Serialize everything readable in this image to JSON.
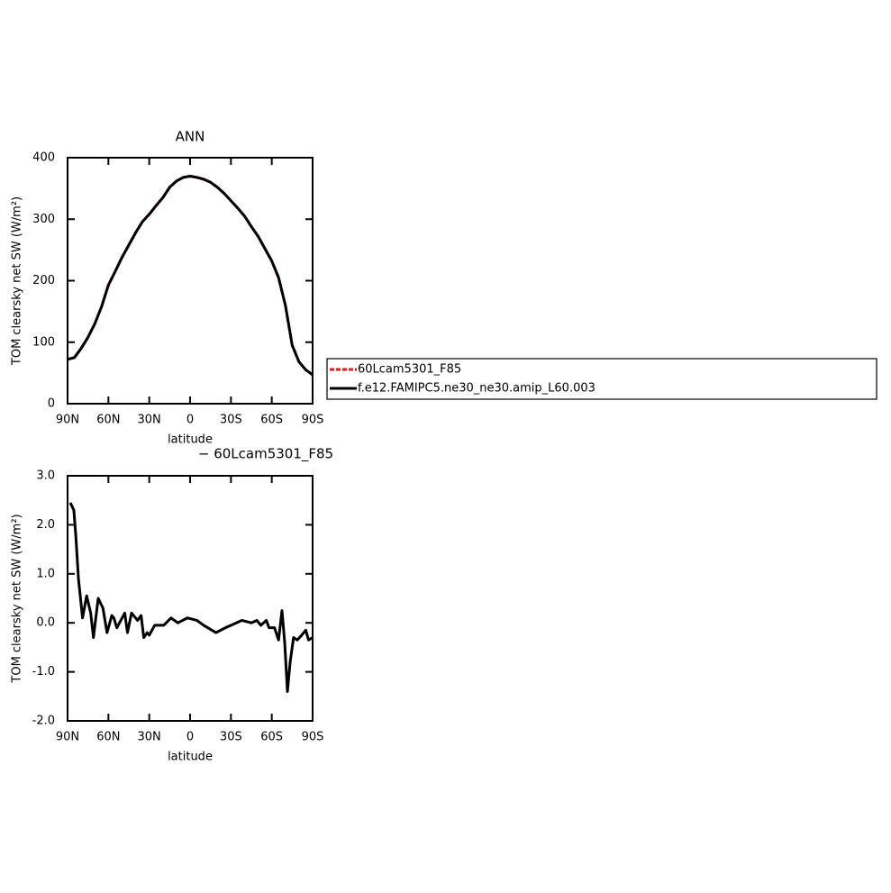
{
  "chart_data": [
    {
      "type": "line",
      "title": "ANN",
      "xlabel": "latitude",
      "ylabel": "TOM clearsky net SW (W/m²)",
      "x": [
        90,
        85,
        80,
        75,
        70,
        65,
        60,
        55,
        50,
        45,
        40,
        35,
        30,
        25,
        20,
        15,
        10,
        5,
        0,
        -5,
        -10,
        -15,
        -20,
        -25,
        -30,
        -35,
        -40,
        -45,
        -50,
        -55,
        -60,
        -65,
        -70,
        -75,
        -80,
        -85,
        -90
      ],
      "series": [
        {
          "name": "60Lcam5301_F85",
          "color": "#e31a1c",
          "dashed": true,
          "values": [
            72,
            75,
            90,
            108,
            130,
            158,
            193,
            215,
            238,
            258,
            278,
            296,
            308,
            322,
            335,
            352,
            362,
            368,
            370,
            368,
            365,
            360,
            352,
            342,
            330,
            318,
            305,
            288,
            272,
            252,
            232,
            205,
            160,
            95,
            68,
            55,
            47
          ]
        },
        {
          "name": "f.e12.FAMIPC5.ne30_ne30.amip_L60.003",
          "color": "#000000",
          "dashed": false,
          "values": [
            72,
            75,
            90,
            108,
            130,
            158,
            193,
            215,
            238,
            258,
            278,
            296,
            308,
            322,
            335,
            352,
            362,
            368,
            370,
            368,
            365,
            360,
            352,
            342,
            330,
            318,
            305,
            288,
            272,
            252,
            232,
            205,
            160,
            95,
            68,
            55,
            47
          ]
        }
      ],
      "xlim": [
        90,
        -90
      ],
      "xticks": [
        {
          "value": 90,
          "label": "90N"
        },
        {
          "value": 60,
          "label": "60N"
        },
        {
          "value": 30,
          "label": "30N"
        },
        0,
        {
          "value": -30,
          "label": "30S"
        },
        {
          "value": -60,
          "label": "60S"
        },
        {
          "value": -90,
          "label": "90S"
        }
      ],
      "ylim": [
        0,
        400
      ],
      "yticks": [
        0,
        100,
        200,
        300,
        400
      ],
      "legend": true
    },
    {
      "type": "line",
      "title": "− 60Lcam5301_F85",
      "xlabel": "latitude",
      "ylabel": "TOM clearsky net SW (W/m²)",
      "x": [
        88,
        85.4,
        84,
        82,
        79,
        76,
        73,
        71,
        67.5,
        64,
        61,
        57.5,
        56,
        53.8,
        48,
        46,
        43,
        38.6,
        36,
        34,
        31.5,
        30,
        26,
        19.4,
        14,
        9,
        2,
        -5,
        -10,
        -19,
        -26,
        -38,
        -45,
        -49,
        -52,
        -56,
        -58,
        -62,
        -65,
        -67.5,
        -69.5,
        -71.5,
        -73.5,
        -76,
        -78.7,
        -82,
        -85,
        -87,
        -90
      ],
      "series": [
        {
          "name": "60Lcam5301_F85",
          "color": "#000000",
          "dashed": false,
          "values": [
            2.45,
            2.3,
            1.8,
            0.9,
            0.1,
            0.55,
            0.2,
            -0.3,
            0.5,
            0.3,
            -0.2,
            0.15,
            0.1,
            -0.1,
            0.2,
            -0.2,
            0.2,
            0.05,
            0.15,
            -0.3,
            -0.2,
            -0.25,
            -0.05,
            -0.05,
            0.1,
            0.0,
            0.1,
            0.05,
            -0.05,
            -0.2,
            -0.1,
            0.05,
            0.0,
            0.05,
            -0.05,
            0.05,
            -0.1,
            -0.1,
            -0.35,
            0.25,
            -0.4,
            -1.4,
            -0.8,
            -0.3,
            -0.35,
            -0.25,
            -0.15,
            -0.35,
            -0.3
          ]
        }
      ],
      "xlim": [
        90,
        -90
      ],
      "xticks": [
        {
          "value": 90,
          "label": "90N"
        },
        {
          "value": 60,
          "label": "60N"
        },
        {
          "value": 30,
          "label": "30N"
        },
        0,
        {
          "value": -30,
          "label": "30S"
        },
        {
          "value": -60,
          "label": "60S"
        },
        {
          "value": -90,
          "label": "90S"
        }
      ],
      "ylim": [
        -2,
        3
      ],
      "yticks": [
        {
          "value": -2,
          "label": "-2.0"
        },
        {
          "value": -1,
          "label": "-1.0"
        },
        {
          "value": 0,
          "label": "0.0"
        },
        {
          "value": 1,
          "label": "1.0"
        },
        {
          "value": 2,
          "label": "2.0"
        },
        {
          "value": 3,
          "label": "3.0"
        }
      ],
      "legend": false
    }
  ]
}
